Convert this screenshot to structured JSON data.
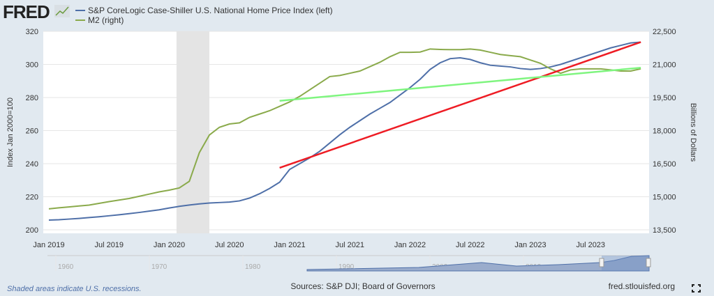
{
  "brand": "FRED",
  "footer": {
    "recession_note": "Shaded areas indicate U.S. recessions.",
    "sources": "Sources: S&P DJI; Board of Governors",
    "site": "fred.stlouisfed.org"
  },
  "navigator": {
    "ticks": [
      "1960",
      "1970",
      "1980",
      "1990",
      "2000",
      "2010",
      "2020"
    ]
  },
  "chart_data": {
    "type": "line",
    "legend_placement": "top-left",
    "grid": true,
    "xlabel": "",
    "ylabel": "Index Jan 2000=100",
    "y2label": "Billions of Dollars",
    "ylim": [
      200,
      320
    ],
    "y2lim": [
      13500,
      22500
    ],
    "yticks": [
      "200",
      "220",
      "240",
      "260",
      "280",
      "300",
      "320"
    ],
    "y2ticks": [
      "13,500",
      "15,000",
      "16,500",
      "18,000",
      "19,500",
      "21,000",
      "22,500"
    ],
    "xticks": [
      "Jan 2019",
      "Jul 2019",
      "Jan 2020",
      "Jul 2020",
      "Jan 2021",
      "Jul 2021",
      "Jan 2022",
      "Jul 2022",
      "Jan 2023",
      "Jul 2023"
    ],
    "start": "2019-01",
    "recession": [
      "2020-02",
      "2020-04"
    ],
    "series": [
      {
        "name": "S&P CoreLogic Case-Shiller U.S. National Home Price Index (left)",
        "axis": "left",
        "color": "#4e6fa8",
        "values": [
          205.9,
          206.1,
          206.5,
          206.9,
          207.4,
          207.9,
          208.5,
          209.1,
          209.8,
          210.5,
          211.3,
          212.1,
          213.2,
          214.2,
          215.0,
          215.7,
          216.2,
          216.5,
          216.8,
          217.5,
          219.2,
          221.8,
          225.0,
          228.8,
          236.5,
          240.0,
          243.5,
          247.5,
          252.5,
          257.5,
          262.0,
          266.0,
          270.0,
          273.5,
          277.0,
          281.5,
          286.0,
          291.0,
          297.0,
          301.0,
          303.5,
          304.0,
          303.0,
          301.0,
          299.5,
          299.0,
          298.5,
          297.5,
          297.0,
          297.5,
          298.5,
          300.0,
          302.0,
          304.0,
          306.0,
          308.0,
          310.0,
          311.5,
          313.0,
          313.5
        ]
      },
      {
        "name": "M2 (right)",
        "axis": "right",
        "color": "#8aaa4b",
        "values": [
          14450,
          14500,
          14540,
          14580,
          14620,
          14700,
          14780,
          14850,
          14920,
          15020,
          15120,
          15220,
          15300,
          15400,
          15700,
          17000,
          17800,
          18150,
          18300,
          18350,
          18600,
          18750,
          18900,
          19100,
          19300,
          19550,
          19850,
          20150,
          20450,
          20500,
          20600,
          20700,
          20900,
          21100,
          21350,
          21550,
          21550,
          21560,
          21700,
          21680,
          21670,
          21670,
          21700,
          21650,
          21550,
          21450,
          21400,
          21350,
          21200,
          21050,
          20800,
          20600,
          20750,
          20800,
          20800,
          20800,
          20750,
          20700,
          20700,
          20800
        ]
      }
    ],
    "trendlines": [
      {
        "color": "#ee1c24",
        "axis": "left",
        "from": [
          "2020-12",
          237.5
        ],
        "to": [
          "2023-12",
          313.5
        ]
      },
      {
        "color": "#7ff57f",
        "axis": "right",
        "from": [
          "2020-12",
          19350
        ],
        "to": [
          "2023-12",
          20850
        ]
      }
    ]
  }
}
